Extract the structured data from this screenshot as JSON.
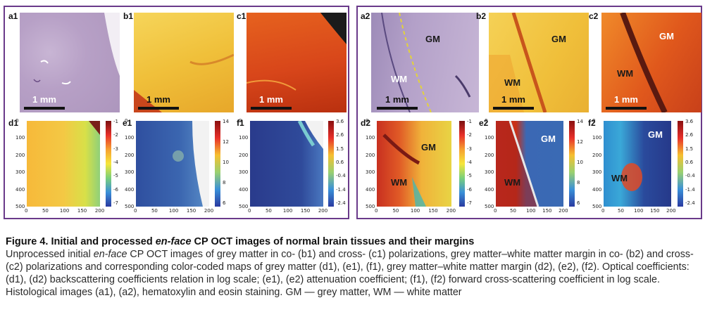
{
  "panels": {
    "a1": "a1",
    "b1": "b1",
    "c1": "c1",
    "d1": "d1",
    "e1": "e1",
    "f1": "f1",
    "a2": "a2",
    "b2": "b2",
    "c2": "c2",
    "d2": "d2",
    "e2": "e2",
    "f2": "f2"
  },
  "scale_bar": "1 mm",
  "regions": {
    "gm": "GM",
    "wm": "WM"
  },
  "y_ticks": [
    "0",
    "100",
    "200",
    "300",
    "400",
    "500"
  ],
  "x_ticks": [
    "0",
    "50",
    "100",
    "150",
    "200"
  ],
  "colorbars": {
    "backscatter": [
      "-1",
      "-2",
      "-3",
      "-4",
      "-5",
      "-6",
      "-7"
    ],
    "attenuation": [
      "14",
      "12",
      "10",
      "8",
      "6"
    ],
    "forward": [
      "3.6",
      "2.6",
      "1.5",
      "0.6",
      "-0.4",
      "-1.4",
      "-2.4"
    ]
  },
  "caption": {
    "title_pre": "Figure 4. Initial and processed ",
    "title_italic": "en-face",
    "title_post": " CP OCT images of normal brain tissues and their margins",
    "body_pre": "Unprocessed initial ",
    "body_italic": "en-face",
    "body_post": " CP OCT images of grey matter in co- (b1) and cross- (c1) polarizations, grey matter–white matter margin in co- (b2) and cross- (c2) polarizations and corresponding color-coded maps of grey matter (d1), (e1), (f1), grey matter–white matter margin (d2), (e2), (f2). Optical coefficients: (d1), (d2) backscattering coefficients relation in log scale; (e1), (e2) attenuation coefficient; (f1), (f2) forward cross-scattering coefficient in log scale. Histological images (a1), (a2), hematoxylin and eosin staining. GM — grey matter, WM — white matter"
  },
  "colors": {
    "frame": "#6a3a8a",
    "he_stain": "#b9a3c8",
    "co_pol": "#f2c238",
    "cross_pol": "#d8461a",
    "attenuation_map": "#2f4fa0",
    "forward_map": "#2b3f8f"
  }
}
